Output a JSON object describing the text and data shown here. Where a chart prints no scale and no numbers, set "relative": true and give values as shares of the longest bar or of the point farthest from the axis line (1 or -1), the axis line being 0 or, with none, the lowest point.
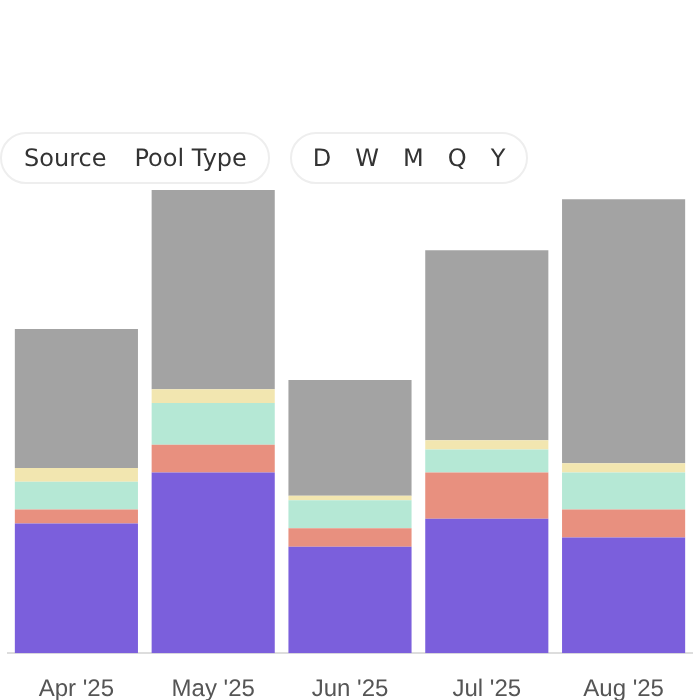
{
  "chart_data": {
    "type": "bar",
    "stacked": true,
    "relative": true,
    "annotations": [
      "Source",
      "Pool Type",
      "D",
      "W",
      "M",
      "Q",
      "Y"
    ],
    "categories": [
      "Apr '25",
      "May '25",
      "Jun '25",
      "Jul '25",
      "Aug '25"
    ],
    "series": [
      {
        "color": "#7b5fdc",
        "values": [
          0.28,
          0.39,
          0.23,
          0.29,
          0.25
        ]
      },
      {
        "color": "#e8907f",
        "values": [
          0.03,
          0.06,
          0.04,
          0.1,
          0.06
        ]
      },
      {
        "color": "#b5e8d5",
        "values": [
          0.06,
          0.09,
          0.06,
          0.05,
          0.08
        ]
      },
      {
        "color": "#f2e6b0",
        "values": [
          0.03,
          0.03,
          0.01,
          0.02,
          0.02
        ]
      },
      {
        "color": "#a3a3a3",
        "values": [
          0.3,
          0.43,
          0.25,
          0.41,
          0.57
        ]
      }
    ]
  }
}
